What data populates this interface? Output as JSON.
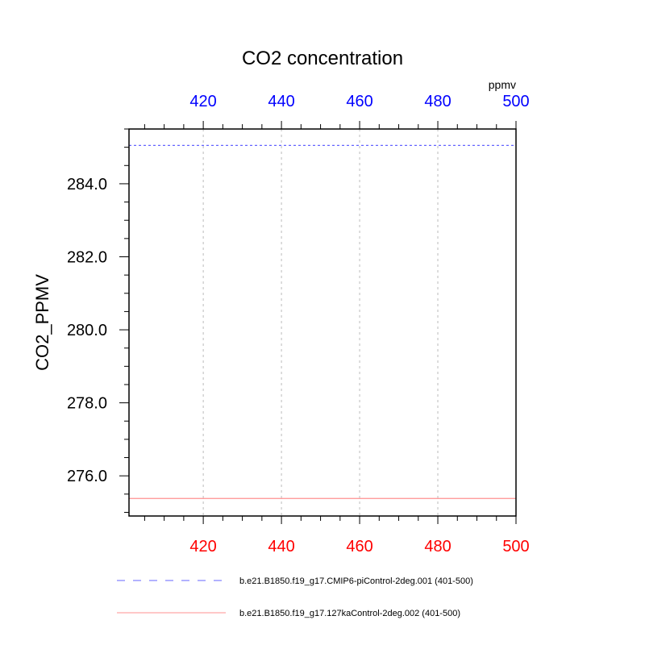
{
  "chart_data": {
    "type": "line",
    "title": "CO2 concentration",
    "units_label": "ppmv",
    "ylabel": "CO2_PPMV",
    "xlabel": "",
    "xlim": [
      401,
      500
    ],
    "ylim": [
      274.9,
      285.5
    ],
    "x_ticks": [
      420,
      440,
      460,
      480,
      500
    ],
    "y_ticks": [
      276.0,
      278.0,
      280.0,
      282.0,
      284.0
    ],
    "y_tick_labels": [
      "276.0",
      "278.0",
      "280.0",
      "282.0",
      "284.0"
    ],
    "top_axis_color": "#0000ff",
    "bottom_axis_color": "#ff0000",
    "grid": "vertical dashed at major x ticks",
    "legend_placement": "bottom",
    "series": [
      {
        "name": "b.e21.B1850.f19_g17.CMIP6-piControl-2deg.001 (401-500)",
        "color": "#6464ff",
        "dash": "dashed",
        "x": [
          401,
          500
        ],
        "y": [
          285.05,
          285.05
        ]
      },
      {
        "name": "b.e21.B1850.f19_g17.127kaControl-2deg.002 (401-500)",
        "color": "#ff9090",
        "dash": "solid",
        "x": [
          401,
          500
        ],
        "y": [
          275.38,
          275.38
        ]
      }
    ]
  }
}
